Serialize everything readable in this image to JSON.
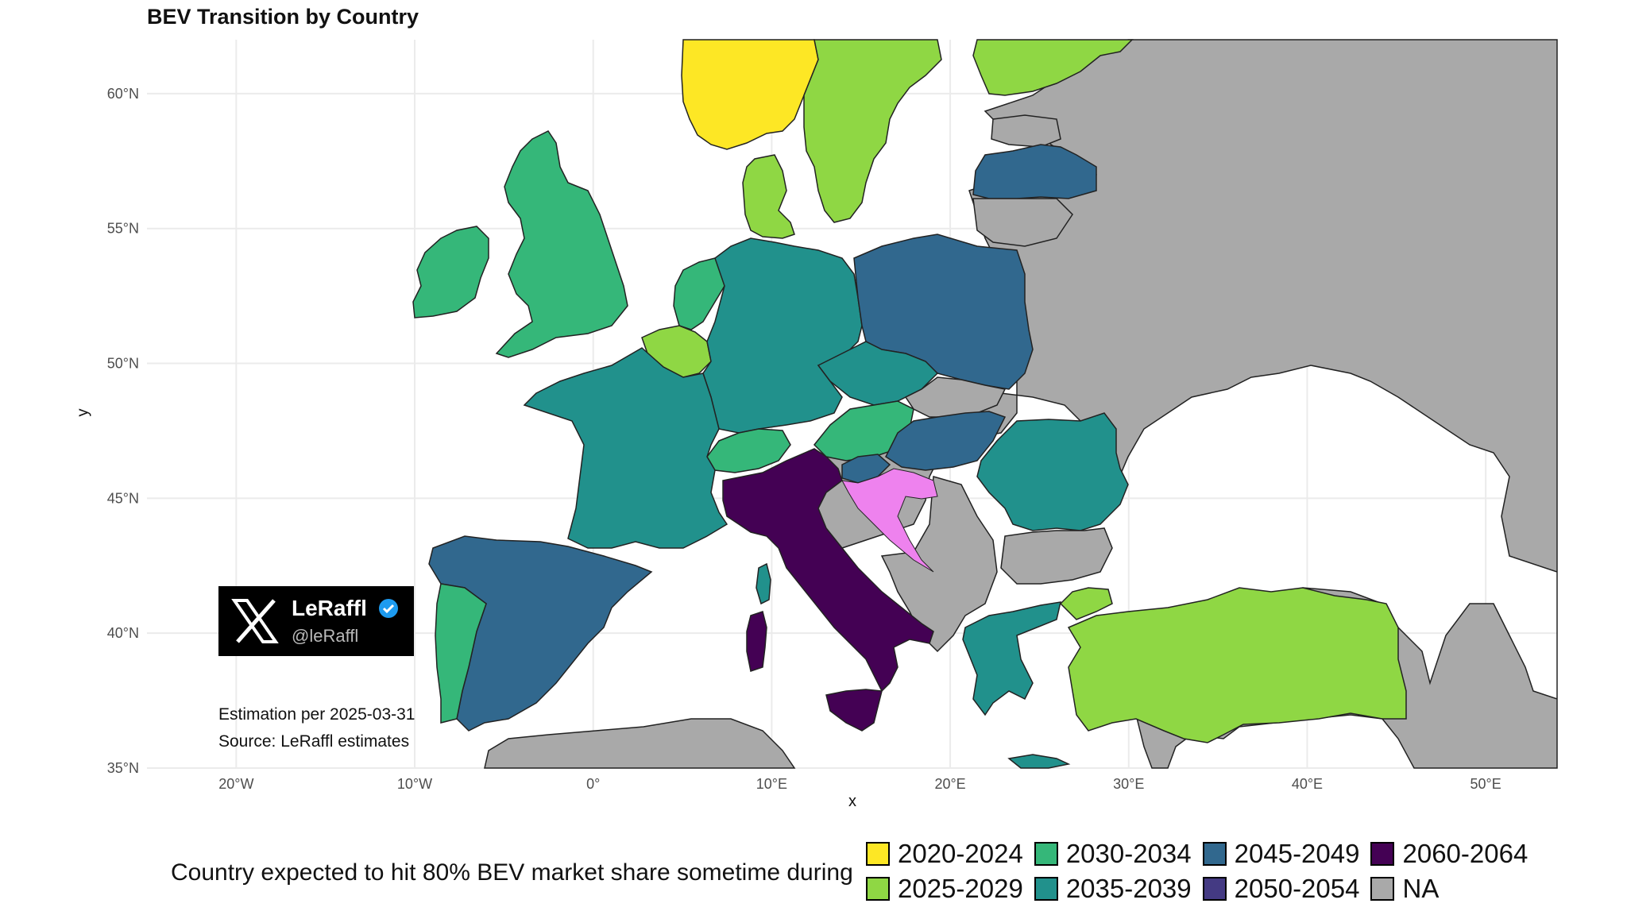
{
  "title": "BEV Transition by Country",
  "axes": {
    "xlabel": "x",
    "ylabel": "y",
    "x_ticks": [
      "20°W",
      "10°W",
      "0°",
      "10°E",
      "20°E",
      "30°E",
      "40°E",
      "50°E"
    ],
    "y_ticks": [
      "60°N",
      "55°N",
      "50°N",
      "45°N",
      "40°N",
      "35°N"
    ],
    "x_tick_values": [
      -20,
      -10,
      0,
      10,
      20,
      30,
      40,
      50
    ],
    "y_tick_values": [
      60,
      55,
      50,
      45,
      40,
      35
    ],
    "lon_range": [
      -25,
      54
    ],
    "lat_range": [
      35,
      62
    ]
  },
  "badge": {
    "name": "LeRaffl",
    "handle": "@leRaffl",
    "icon": "x-logo-icon",
    "verified_icon": "verified-check-icon"
  },
  "notes": {
    "estimation": "Estimation per 2025-03-31",
    "source": "Source: LeRaffl estimates"
  },
  "legend": {
    "title": "Country expected to hit 80% BEV market share sometime during",
    "items": [
      {
        "label": "2020-2024",
        "color": "#fde725"
      },
      {
        "label": "2030-2034",
        "color": "#35b779"
      },
      {
        "label": "2045-2049",
        "color": "#31688e"
      },
      {
        "label": "2060-2064",
        "color": "#440154"
      },
      {
        "label": "2025-2029",
        "color": "#8fd744"
      },
      {
        "label": "2035-2039",
        "color": "#21918c"
      },
      {
        "label": "2050-2054",
        "color": "#443a83"
      },
      {
        "label": "NA",
        "color": "#a9a9a9"
      }
    ]
  },
  "colors": {
    "2020-2024": "#fde725",
    "2025-2029": "#8fd744",
    "2030-2034": "#35b779",
    "2035-2039": "#21918c",
    "2045-2049": "#31688e",
    "2050-2054": "#443a83",
    "2060-2064": "#440154",
    "NA": "#a9a9a9",
    "unlisted": "#ee82ee"
  }
}
